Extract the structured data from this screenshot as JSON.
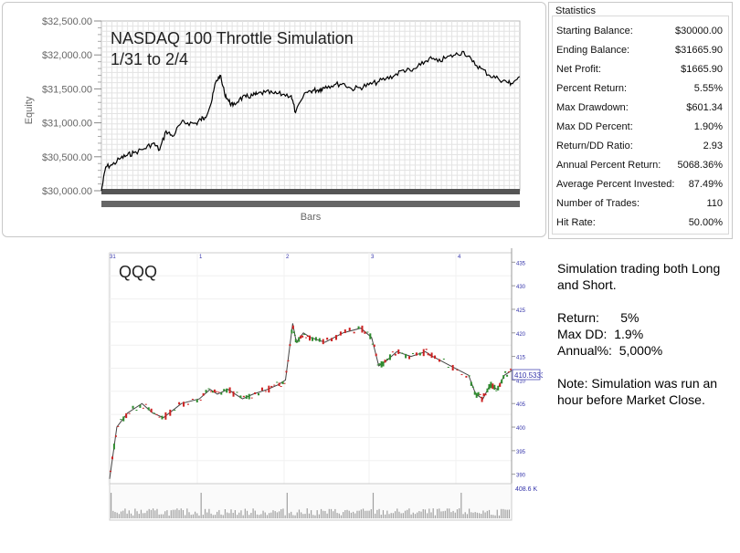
{
  "equity_chart": {
    "title_line1": "NASDAQ 100 Throttle Simulation",
    "title_line2": "1/31 to 2/4",
    "colors": {
      "line": "#000000",
      "grid": "#e6e6e6",
      "axis_band": "#555555"
    }
  },
  "statistics": {
    "header": "Statistics",
    "rows": [
      {
        "label": "Starting Balance:",
        "value": "$30000.00"
      },
      {
        "label": "Ending Balance:",
        "value": "$31665.90"
      },
      {
        "label": "Net Profit:",
        "value": "$1665.90"
      },
      {
        "label": "Percent Return:",
        "value": "5.55%"
      },
      {
        "label": "Max Drawdown:",
        "value": "$601.34"
      },
      {
        "label": "Max DD Percent:",
        "value": "1.90%"
      },
      {
        "label": "Return/DD Ratio:",
        "value": "2.93"
      },
      {
        "label": "Annual Percent Return:",
        "value": "5068.36%"
      },
      {
        "label": "Average Percent Invested:",
        "value": "87.49%"
      },
      {
        "label": "Number of Trades:",
        "value": "110"
      },
      {
        "label": "Hit Rate:",
        "value": "50.00%"
      }
    ]
  },
  "qqq_chart": {
    "title": "QQQ",
    "last_price_label": "410.5333",
    "volume_label": "408.6 K",
    "colors": {
      "up": "#2e8b2e",
      "down": "#cc2222",
      "grid": "#eeeeee",
      "axis_text": "#3333aa"
    }
  },
  "notes": {
    "strategy": "Simulation trading both Long and Short.",
    "return": "Return:      5%",
    "maxdd": "Max DD:  1.9%",
    "annual": "Annual%:  5,000%",
    "note": "Note: Simulation was run an hour before Market Close."
  },
  "chart_data": [
    {
      "type": "line",
      "xlabel": "Bars",
      "ylabel": "Equity",
      "ylim": [
        30000,
        32500
      ],
      "yticks": [
        "$30,000.00",
        "$30,500.00",
        "$31,000.00",
        "$31,500.00",
        "$32,000.00",
        "$32,500.00"
      ],
      "grid": true,
      "x": [
        0,
        2,
        5,
        9,
        12,
        15,
        20,
        24,
        27,
        30,
        33,
        37,
        40,
        44,
        46,
        48,
        51,
        53,
        55,
        57,
        59,
        61,
        64,
        67,
        70,
        72,
        76,
        80,
        84,
        88,
        90,
        95,
        98,
        100,
        102,
        104,
        108,
        112,
        116,
        120,
        124,
        128,
        132,
        136,
        140,
        144,
        148,
        152,
        156,
        160,
        164,
        168,
        172,
        176,
        180,
        184,
        188,
        190,
        194
      ],
      "y": [
        30000,
        30350,
        30380,
        30480,
        30520,
        30560,
        30620,
        30700,
        30600,
        30880,
        30800,
        31000,
        31000,
        30990,
        31050,
        31080,
        31300,
        31600,
        31700,
        31450,
        31320,
        31250,
        31350,
        31380,
        31400,
        31420,
        31450,
        31430,
        31420,
        31400,
        31150,
        31450,
        31480,
        31480,
        31500,
        31540,
        31560,
        31580,
        31500,
        31520,
        31560,
        31600,
        31650,
        31700,
        31780,
        31760,
        31850,
        31950,
        31900,
        31960,
        32000,
        32050,
        31900,
        31800,
        31700,
        31650,
        31600,
        31580,
        31680
      ]
    },
    {
      "type": "line",
      "title": "QQQ",
      "ylim": [
        388,
        437
      ],
      "yticks": [
        "390",
        "395",
        "400",
        "405",
        "410",
        "415",
        "420",
        "425",
        "430",
        "435"
      ],
      "xticks": [
        "31",
        "1",
        "2",
        "3",
        "4"
      ],
      "x": [
        0,
        2,
        5,
        9,
        12,
        15,
        20,
        25,
        28,
        30,
        33,
        37,
        40,
        44,
        47,
        49,
        51,
        52,
        54,
        56,
        60,
        65,
        70,
        73,
        75,
        77,
        80,
        84,
        88,
        90,
        95,
        100,
        102,
        104,
        106,
        108,
        110,
        112
      ],
      "y": [
        389,
        400,
        403,
        405,
        403,
        402,
        405,
        406,
        408,
        407,
        408,
        406,
        407,
        408,
        409,
        410,
        422,
        418,
        420,
        419,
        418,
        420,
        421,
        419,
        413,
        414,
        416,
        415,
        416,
        415,
        413,
        411,
        407,
        406,
        409,
        408,
        411,
        412
      ]
    }
  ]
}
